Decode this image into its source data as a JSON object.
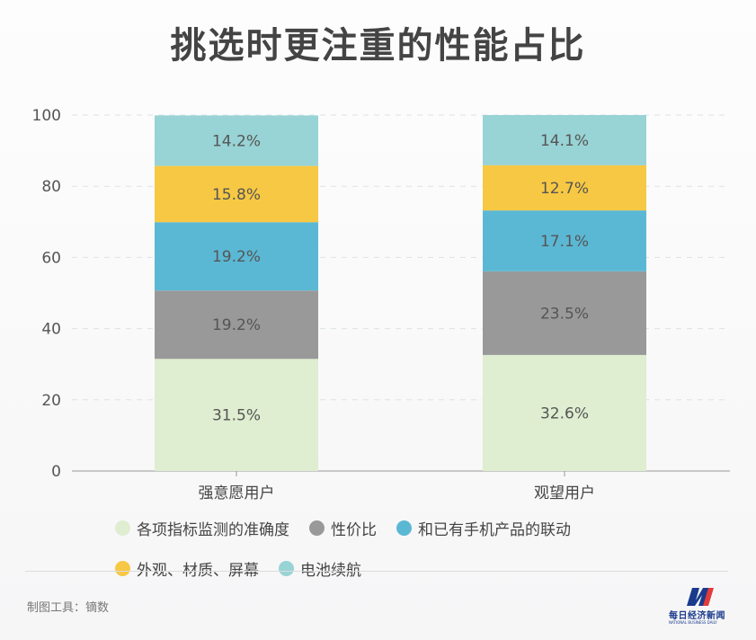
{
  "title": "挑选时更注重的性能占比",
  "source": "制图工具：镝数",
  "logo": {
    "name": "每日经济新闻",
    "sub": "NATIONAL BUSINESS DAILY"
  },
  "colors": {
    "各项指标监测的准确度": "#dfedd0",
    "性价比": "#999999",
    "和已有手机产品的联动": "#5bb8d4",
    "外观、材质、屏幕": "#f7c843",
    "电池续航": "#98d3d5"
  },
  "chart_data": {
    "type": "bar",
    "stacked": true,
    "categories": [
      "强意愿用户",
      "观望用户"
    ],
    "series": [
      {
        "name": "各项指标监测的准确度",
        "values": [
          31.5,
          32.6
        ],
        "labels": [
          "31.5%",
          "32.6%"
        ]
      },
      {
        "name": "性价比",
        "values": [
          19.2,
          23.5
        ],
        "labels": [
          "19.2%",
          "23.5%"
        ]
      },
      {
        "name": "和已有手机产品的联动",
        "values": [
          19.2,
          17.1
        ],
        "labels": [
          "19.2%",
          "17.1%"
        ]
      },
      {
        "name": "外观、材质、屏幕",
        "values": [
          15.8,
          12.7
        ],
        "labels": [
          "15.8%",
          "12.7%"
        ]
      },
      {
        "name": "电池续航",
        "values": [
          14.2,
          14.1
        ],
        "labels": [
          "14.2%",
          "14.1%"
        ]
      }
    ],
    "yticks": [
      "0",
      "20",
      "40",
      "60",
      "80",
      "100"
    ],
    "ylim": [
      0,
      100
    ],
    "grid": true,
    "legend_position": "bottom"
  }
}
